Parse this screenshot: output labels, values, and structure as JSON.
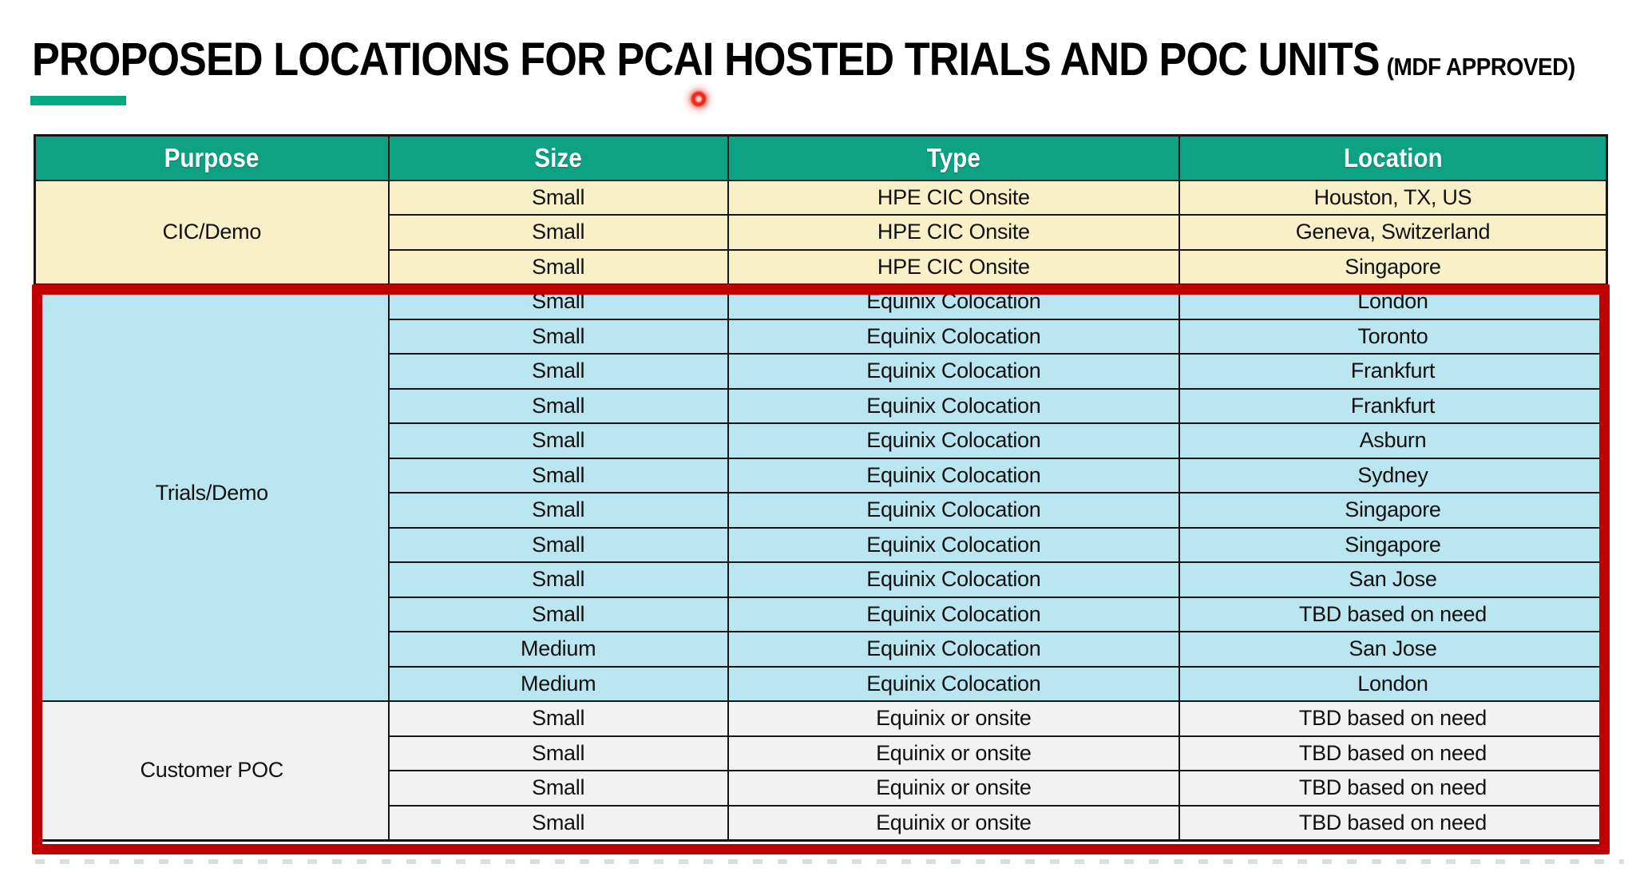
{
  "header": {
    "title": "PROPOSED LOCATIONS FOR PCAI HOSTED TRIALS AND POC UNITS",
    "subtitle": "(MDF APPROVED)"
  },
  "colors": {
    "table_header_bg": "#0DA283",
    "accent_green": "#01A982",
    "cic_demo_row_bg": "#FAF0C8",
    "trials_demo_row_bg": "#B9E6F0",
    "customer_poc_row_bg": "#F2F2F2",
    "highlight_border_red": "#C00000"
  },
  "annotations": {
    "laser_pointer": "red-laser-pointer-dot",
    "highlight": "red rectangle outlining Trials/Demo and Customer POC sections"
  },
  "table": {
    "columns": [
      "Purpose",
      "Size",
      "Type",
      "Location"
    ],
    "sections": [
      {
        "purpose": "CIC/Demo",
        "bg": "cream",
        "highlighted": false,
        "rows": [
          [
            "Small",
            "HPE CIC Onsite",
            "Houston, TX, US"
          ],
          [
            "Small",
            "HPE CIC Onsite",
            "Geneva, Switzerland"
          ],
          [
            "Small",
            "HPE CIC Onsite",
            "Singapore"
          ]
        ]
      },
      {
        "purpose": "Trials/Demo",
        "bg": "blue",
        "highlighted": true,
        "rows": [
          [
            "Small",
            "Equinix Colocation",
            "London"
          ],
          [
            "Small",
            "Equinix Colocation",
            "Toronto"
          ],
          [
            "Small",
            "Equinix Colocation",
            "Frankfurt"
          ],
          [
            "Small",
            "Equinix Colocation",
            "Frankfurt"
          ],
          [
            "Small",
            "Equinix Colocation",
            "Asburn"
          ],
          [
            "Small",
            "Equinix Colocation",
            "Sydney"
          ],
          [
            "Small",
            "Equinix Colocation",
            "Singapore"
          ],
          [
            "Small",
            "Equinix Colocation",
            "Singapore"
          ],
          [
            "Small",
            "Equinix Colocation",
            "San Jose"
          ],
          [
            "Small",
            "Equinix Colocation",
            "TBD based on need"
          ],
          [
            "Medium",
            "Equinix Colocation",
            "San Jose"
          ],
          [
            "Medium",
            "Equinix Colocation",
            "London"
          ]
        ]
      },
      {
        "purpose": "Customer POC",
        "bg": "gray",
        "highlighted": true,
        "rows": [
          [
            "Small",
            "Equinix or onsite",
            "TBD based on need"
          ],
          [
            "Small",
            "Equinix or onsite",
            "TBD based on need"
          ],
          [
            "Small",
            "Equinix or onsite",
            "TBD based on need"
          ],
          [
            "Small",
            "Equinix or onsite",
            "TBD based on need"
          ]
        ]
      }
    ]
  }
}
